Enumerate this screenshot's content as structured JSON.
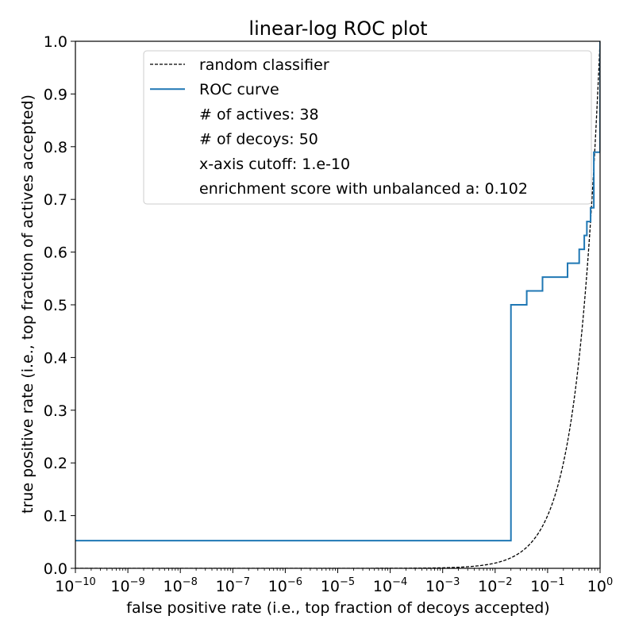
{
  "chart_data": {
    "type": "line",
    "title": "linear-log ROC plot",
    "xlabel": "false positive rate (i.e., top fraction of decoys accepted)",
    "ylabel": "true positive rate (i.e., top fraction of actives accepted)",
    "xscale": "log",
    "xlim": [
      1e-10,
      1
    ],
    "ylim": [
      0.0,
      1.0
    ],
    "grid": false,
    "x_ticks": [
      {
        "base": "10",
        "exp": "−10",
        "value": 1e-10
      },
      {
        "base": "10",
        "exp": "−9",
        "value": 1e-09
      },
      {
        "base": "10",
        "exp": "−8",
        "value": 1e-08
      },
      {
        "base": "10",
        "exp": "−7",
        "value": 1e-07
      },
      {
        "base": "10",
        "exp": "−6",
        "value": 1e-06
      },
      {
        "base": "10",
        "exp": "−5",
        "value": 1e-05
      },
      {
        "base": "10",
        "exp": "−4",
        "value": 0.0001
      },
      {
        "base": "10",
        "exp": "−3",
        "value": 0.001
      },
      {
        "base": "10",
        "exp": "−2",
        "value": 0.01
      },
      {
        "base": "10",
        "exp": "−1",
        "value": 0.1
      },
      {
        "base": "10",
        "exp": "0",
        "value": 1
      }
    ],
    "y_ticks": [
      "0.0",
      "0.1",
      "0.2",
      "0.3",
      "0.4",
      "0.5",
      "0.6",
      "0.7",
      "0.8",
      "0.9",
      "1.0"
    ],
    "legend_position": "top-right",
    "legend": [
      {
        "label": "random classifier",
        "style": "dashed",
        "color": "#000000"
      },
      {
        "label": "ROC curve",
        "style": "solid",
        "color": "#1f77b4"
      },
      {
        "label": "# of actives: 38",
        "style": "none"
      },
      {
        "label": "# of decoys: 50",
        "style": "none"
      },
      {
        "label": "x-axis cutoff: 1.e-10",
        "style": "none"
      },
      {
        "label": "enrichment score with unbalanced a: 0.102",
        "style": "none"
      }
    ],
    "series": [
      {
        "label": "random classifier",
        "kind": "identity",
        "color": "#000000",
        "dash": "dashed"
      },
      {
        "label": "ROC curve",
        "kind": "step",
        "color": "#1f77b4",
        "x": [
          1e-10,
          0.02,
          0.02,
          0.04,
          0.04,
          0.08,
          0.08,
          0.24,
          0.24,
          0.4,
          0.4,
          0.5,
          0.5,
          0.56,
          0.56,
          0.66,
          0.66,
          0.76,
          0.76,
          1.0,
          1.0
        ],
        "y": [
          0.0526,
          0.0526,
          0.5,
          0.5,
          0.5263,
          0.5263,
          0.5526,
          0.5526,
          0.5789,
          0.5789,
          0.6053,
          0.6053,
          0.6316,
          0.6316,
          0.6579,
          0.6579,
          0.6842,
          0.6842,
          0.7895,
          0.7895,
          1.0
        ]
      }
    ]
  }
}
